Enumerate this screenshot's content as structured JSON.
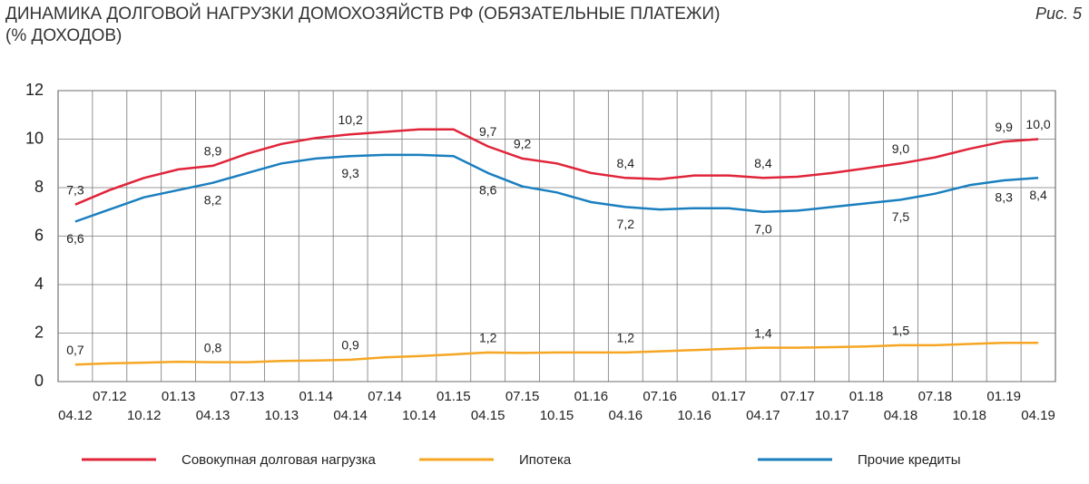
{
  "chart_data": {
    "type": "line",
    "title": "ДИНАМИКА ДОЛГОВОЙ НАГРУЗКИ ДОМОХОЗЯЙСТВ РФ (ОБЯЗАТЕЛЬНЫЕ ПЛАТЕЖИ)",
    "subtitle": "(% ДОХОДОВ)",
    "figure_label": "Рис. 5",
    "categories": [
      "04.12",
      "07.12",
      "10.12",
      "01.13",
      "04.13",
      "07.13",
      "10.13",
      "01.14",
      "04.14",
      "07.14",
      "10.14",
      "01.15",
      "04.15",
      "07.15",
      "10.15",
      "01.16",
      "04.16",
      "07.16",
      "10.16",
      "01.17",
      "04.17",
      "07.17",
      "10.17",
      "01.18",
      "04.18",
      "07.18",
      "10.18",
      "01.19",
      "04.19"
    ],
    "series": [
      {
        "name": "Совокупная долговая нагрузка",
        "color": "#e0243a",
        "label_position": "above",
        "values": [
          7.3,
          7.9,
          8.4,
          8.75,
          8.9,
          9.4,
          9.8,
          10.05,
          10.2,
          10.3,
          10.4,
          10.4,
          9.7,
          9.2,
          9.0,
          8.6,
          8.4,
          8.35,
          8.5,
          8.5,
          8.4,
          8.45,
          8.6,
          8.8,
          9.0,
          9.25,
          9.6,
          9.9,
          10.0
        ],
        "value_labels": [
          "7,3",
          null,
          null,
          null,
          "8,9",
          null,
          null,
          null,
          "10,2",
          null,
          null,
          null,
          "9,7",
          "9,2",
          null,
          null,
          "8,4",
          null,
          null,
          null,
          "8,4",
          null,
          null,
          null,
          "9,0",
          null,
          null,
          "9,9",
          "10,0"
        ]
      },
      {
        "name": "Ипотека",
        "color": "#f5a623",
        "label_position": "above",
        "values": [
          0.7,
          0.75,
          0.78,
          0.82,
          0.8,
          0.8,
          0.85,
          0.87,
          0.9,
          1.0,
          1.05,
          1.12,
          1.2,
          1.18,
          1.2,
          1.2,
          1.2,
          1.25,
          1.3,
          1.35,
          1.4,
          1.4,
          1.42,
          1.45,
          1.5,
          1.5,
          1.55,
          1.6,
          1.6
        ],
        "value_labels": [
          "0,7",
          null,
          null,
          null,
          "0,8",
          null,
          null,
          null,
          "0,9",
          null,
          null,
          null,
          "1,2",
          null,
          null,
          null,
          "1,2",
          null,
          null,
          null,
          "1,4",
          null,
          null,
          null,
          "1,5",
          null,
          null,
          null,
          null
        ]
      },
      {
        "name": "Прочие кредиты",
        "color": "#1a7fbf",
        "label_position": "below",
        "values": [
          6.6,
          7.1,
          7.6,
          7.9,
          8.2,
          8.6,
          9.0,
          9.2,
          9.3,
          9.35,
          9.35,
          9.3,
          8.6,
          8.05,
          7.8,
          7.4,
          7.2,
          7.1,
          7.15,
          7.15,
          7.0,
          7.05,
          7.2,
          7.35,
          7.5,
          7.75,
          8.1,
          8.3,
          8.4
        ],
        "value_labels": [
          "6,6",
          null,
          null,
          null,
          "8,2",
          null,
          null,
          null,
          "9,3",
          null,
          null,
          null,
          "8,6",
          null,
          null,
          null,
          "7,2",
          null,
          null,
          null,
          "7,0",
          null,
          null,
          null,
          "7,5",
          null,
          null,
          "8,3",
          "8,4"
        ]
      }
    ],
    "ylim": [
      0,
      12
    ],
    "yticks": [
      0,
      2,
      4,
      6,
      8,
      10,
      12
    ],
    "grid": true
  }
}
